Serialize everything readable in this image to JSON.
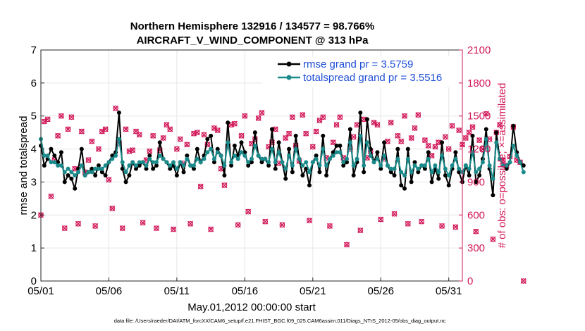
{
  "chart_data": {
    "type": "line",
    "title_line1": "Northern Hemisphere 132916 / 134577 = 98.766%",
    "title_line2": "AIRCRAFT_V_WIND_COMPONENT @ 313 hPa",
    "xlabel": "May.01,2012 00:00:00 start",
    "ylabel_left": "rmse and totalspread",
    "ylabel_right": "# of obs: o=possible; ×=assimilated",
    "footnote": "data file: /Users/raeder/DAI/ATM_forcXX/CAM6_setup/f.e21.FHIST_BGC.f09_025.CAM6assim.011/Diags_NTrS_2012-05/obs_diag_output.nc",
    "x_tick_labels": [
      "05/01",
      "05/06",
      "05/11",
      "05/16",
      "05/21",
      "05/26",
      "05/31"
    ],
    "x_tick_days": [
      1,
      6,
      11,
      16,
      21,
      26,
      31
    ],
    "xlim": [
      1,
      32
    ],
    "ylim_left": [
      0,
      7
    ],
    "y_ticks_left": [
      "0",
      "1",
      "2",
      "3",
      "4",
      "5",
      "6",
      "7"
    ],
    "ylim_right": [
      0,
      2100
    ],
    "y_ticks_right": [
      "0",
      "300",
      "600",
      "900",
      "1200",
      "1500",
      "1800",
      "2100"
    ],
    "legend": [
      "rmse grand pr = 3.5759",
      "totalspread grand pr = 3.5516"
    ],
    "colors": {
      "rmse": "#000000",
      "spread": "#1a8a8a",
      "obs": "#d2185a",
      "legend_text": "#1f4fd8"
    },
    "samples_per_day": 4,
    "series": [
      {
        "name": "rmse",
        "values": [
          4.1,
          3.5,
          3.7,
          4.0,
          3.8,
          3.6,
          3.9,
          3.0,
          3.2,
          3.1,
          2.8,
          3.4,
          4.0,
          3.2,
          3.3,
          3.4,
          3.2,
          3.5,
          3.3,
          3.2,
          3.6,
          3.8,
          3.9,
          5.1,
          3.4,
          3.0,
          3.2,
          3.6,
          3.4,
          3.5,
          3.6,
          3.4,
          3.8,
          3.4,
          3.5,
          4.2,
          3.7,
          3.6,
          3.4,
          3.5,
          3.2,
          3.6,
          3.3,
          3.8,
          3.5,
          3.4,
          4.0,
          3.6,
          3.8,
          4.3,
          4.4,
          3.6,
          4.0,
          3.8,
          3.2,
          4.8,
          3.5,
          4.1,
          3.8,
          4.2,
          3.9,
          3.5,
          3.6,
          4.5,
          3.8,
          3.6,
          3.7,
          3.5,
          4.6,
          3.4,
          4.2,
          3.6,
          3.1,
          4.0,
          3.3,
          4.4,
          3.7,
          3.2,
          3.4,
          2.9,
          3.6,
          3.8,
          3.3,
          4.4,
          3.2,
          3.7,
          3.9,
          4.1,
          4.1,
          3.5,
          3.6,
          4.6,
          3.2,
          3.6,
          5.1,
          3.3,
          4.9,
          4.0,
          3.6,
          3.9,
          3.4,
          4.2,
          3.5,
          3.3,
          3.2,
          4.0,
          2.9,
          2.8,
          4.0,
          3.0,
          3.6,
          3.3,
          3.5,
          3.4,
          3.9,
          3.0,
          3.4,
          3.1,
          4.2,
          3.2,
          2.9,
          3.4,
          3.9,
          3.3,
          3.0,
          3.5,
          3.2,
          4.4,
          3.0,
          3.2,
          3.7,
          4.6,
          3.4,
          2.6,
          4.5,
          3.7,
          3.5,
          3.4,
          3.6,
          4.7,
          3.9,
          3.6,
          3.5
        ]
      },
      {
        "name": "totalspread",
        "values": [
          4.3,
          3.8,
          3.8,
          3.6,
          3.6,
          3.5,
          3.5,
          3.3,
          3.4,
          3.3,
          3.2,
          3.3,
          3.5,
          3.2,
          3.3,
          3.3,
          3.4,
          3.4,
          3.4,
          3.5,
          3.6,
          3.7,
          3.8,
          4.3,
          3.6,
          3.3,
          3.5,
          3.6,
          3.5,
          3.6,
          3.6,
          3.5,
          3.7,
          3.6,
          3.6,
          3.8,
          3.7,
          3.6,
          3.5,
          3.6,
          3.4,
          3.6,
          3.5,
          3.7,
          3.5,
          3.5,
          3.7,
          3.6,
          3.7,
          3.9,
          4.0,
          3.7,
          3.9,
          3.8,
          3.5,
          4.2,
          3.6,
          3.8,
          3.7,
          3.9,
          3.8,
          3.6,
          3.7,
          4.1,
          3.8,
          3.7,
          3.7,
          3.6,
          4.0,
          3.6,
          3.9,
          3.6,
          3.4,
          3.8,
          3.5,
          4.0,
          3.7,
          3.5,
          3.6,
          3.3,
          3.6,
          3.7,
          3.5,
          4.0,
          3.5,
          3.7,
          3.8,
          3.9,
          3.9,
          3.6,
          3.7,
          4.2,
          3.5,
          3.7,
          4.4,
          3.5,
          4.2,
          3.8,
          3.6,
          3.7,
          3.5,
          3.8,
          3.5,
          3.4,
          3.4,
          3.7,
          3.3,
          3.2,
          3.7,
          3.3,
          3.5,
          3.4,
          3.5,
          3.5,
          3.7,
          3.3,
          3.5,
          3.3,
          3.8,
          3.4,
          3.2,
          3.5,
          3.7,
          3.4,
          3.3,
          3.5,
          3.4,
          3.9,
          3.3,
          3.4,
          3.6,
          4.3,
          3.5,
          3.1,
          4.2,
          3.7,
          3.5,
          3.5,
          3.6,
          4.1,
          3.8,
          3.6,
          3.3
        ]
      },
      {
        "name": "obs_count",
        "values": [
          600,
          1450,
          1470,
          770,
          1100,
          1320,
          1500,
          480,
          1380,
          1490,
          1020,
          520,
          1360,
          990,
          1100,
          1270,
          500,
          1200,
          1360,
          1380,
          920,
          660,
          1570,
          1250,
          480,
          1380,
          1180,
          1190,
          1360,
          1330,
          530,
          1100,
          1180,
          1320,
          480,
          1190,
          1300,
          1420,
          1380,
          470,
          1200,
          1290,
          1070,
          1240,
          520,
          1340,
          1350,
          860,
          1330,
          1240,
          470,
          1390,
          1370,
          1020,
          870,
          1220,
          1420,
          1430,
          510,
          1320,
          1500,
          630,
          1250,
          1290,
          1480,
          1530,
          540,
          1220,
          1260,
          1380,
          1070,
          510,
          1300,
          1340,
          1490,
          1230,
          1090,
          1510,
          1340,
          550,
          1220,
          1360,
          1460,
          1490,
          1120,
          500,
          1260,
          1420,
          1490,
          1120,
          330,
          1200,
          1310,
          1420,
          460,
          1470,
          1120,
          1180,
          1440,
          1420,
          560,
          1110,
          1270,
          1440,
          610,
          1320,
          1270,
          1500,
          520,
          1300,
          1390,
          1510,
          540,
          1280,
          1230,
          1140,
          1220,
          1260,
          500,
          1310,
          1200,
          1410,
          490,
          1370,
          1240,
          1300,
          1350,
          1400,
          450,
          1280,
          1200,
          1520,
          1290,
          380,
          1350,
          1420,
          1100,
          1050,
          1130,
          1400,
          1100,
          1080,
          0
        ]
      }
    ]
  }
}
